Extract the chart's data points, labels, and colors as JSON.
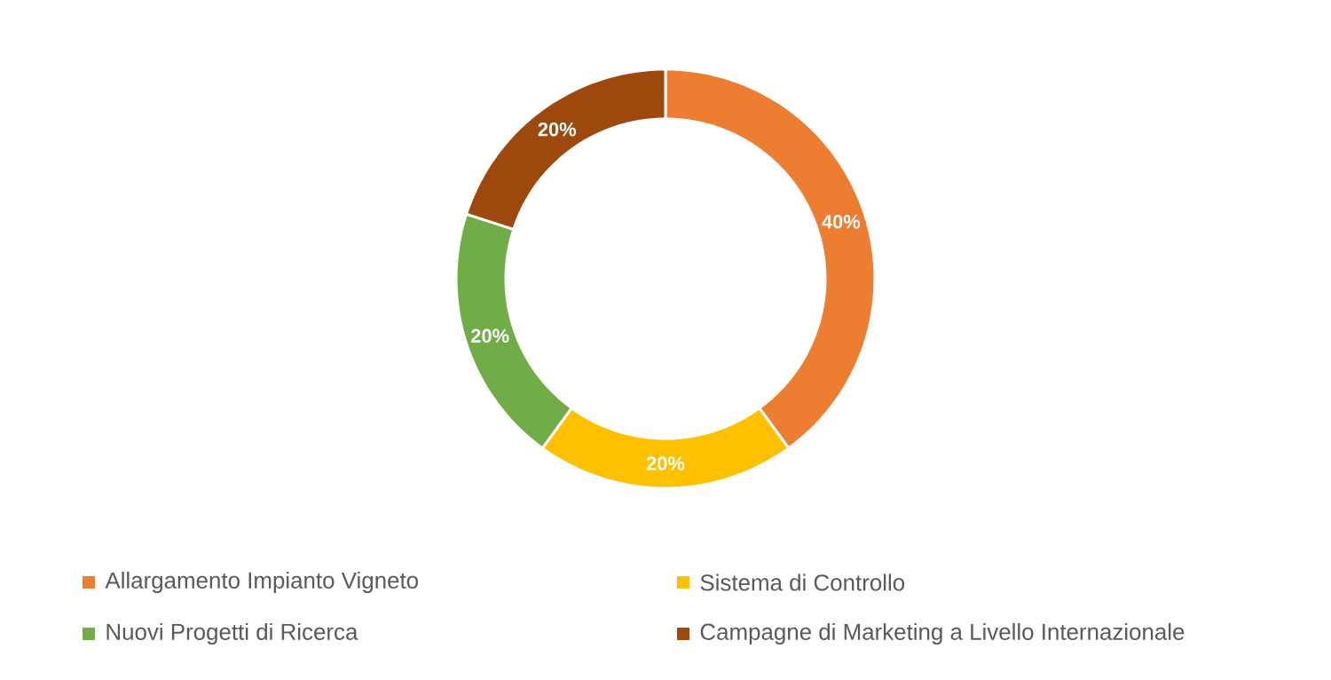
{
  "chart_data": {
    "type": "donut",
    "categories": [
      "Allargamento Impianto Vigneto",
      "Sistema di Controllo",
      "Nuovi Progetti di Ricerca",
      "Campagne di Marketing a Livello Internazionale"
    ],
    "values": [
      40,
      20,
      20,
      20
    ],
    "colors": [
      "#ed7d31",
      "#ffc000",
      "#70ad47",
      "#9e480e"
    ],
    "value_labels": [
      "40%",
      "20%",
      "20%",
      "20%"
    ],
    "legend": "bottom"
  }
}
